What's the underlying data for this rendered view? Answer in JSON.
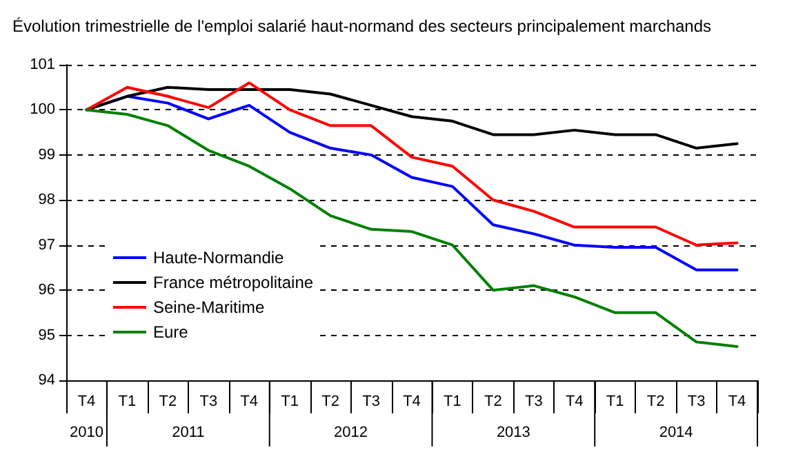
{
  "chart_data": {
    "type": "line",
    "title": "Évolution trimestrielle de l'emploi salarié haut-normand des secteurs principalement marchands",
    "categories": [
      "T4",
      "T1",
      "T2",
      "T3",
      "T4",
      "T1",
      "T2",
      "T3",
      "T4",
      "T1",
      "T2",
      "T3",
      "T4",
      "T1",
      "T2",
      "T3",
      "T4"
    ],
    "annotations": [
      "2010",
      "2011",
      "2012",
      "2013",
      "2014"
    ],
    "series": [
      {
        "name": "Haute-Normandie",
        "color": "#0000ff",
        "values": [
          100,
          100.3,
          100.15,
          99.8,
          100.1,
          99.5,
          99.15,
          99.0,
          98.5,
          98.3,
          97.45,
          97.25,
          97.0,
          96.95,
          96.95,
          96.45,
          96.45
        ]
      },
      {
        "name": "France métropolitaine",
        "color": "#000000",
        "values": [
          100,
          100.3,
          100.5,
          100.45,
          100.45,
          100.45,
          100.35,
          100.1,
          99.85,
          99.75,
          99.45,
          99.45,
          99.55,
          99.45,
          99.45,
          99.15,
          99.25
        ]
      },
      {
        "name": "Seine-Maritime",
        "color": "#ff0000",
        "values": [
          100,
          100.5,
          100.3,
          100.05,
          100.6,
          100.0,
          99.65,
          99.65,
          98.95,
          98.75,
          98.0,
          97.75,
          97.4,
          97.4,
          97.4,
          97.0,
          97.05
        ]
      },
      {
        "name": "Eure",
        "color": "#008000",
        "values": [
          100,
          99.9,
          99.65,
          99.1,
          98.75,
          98.25,
          97.65,
          97.35,
          97.3,
          97.0,
          96.0,
          96.1,
          95.85,
          95.5,
          95.5,
          94.85,
          94.75
        ]
      }
    ],
    "ylim": [
      94,
      101
    ],
    "yticks": [
      94,
      95,
      96,
      97,
      98,
      99,
      100,
      101
    ],
    "grid": "y",
    "legend": "bottom left",
    "marker": "none",
    "line_style": "solid"
  }
}
